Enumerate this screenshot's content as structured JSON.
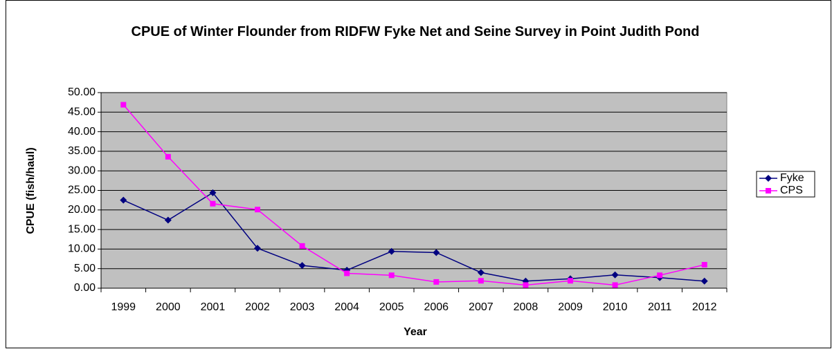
{
  "chart_data": {
    "type": "line",
    "title": "CPUE of Winter Flounder from RIDFW Fyke Net and Seine Survey in Point Judith Pond",
    "x_label": "Year",
    "y_label": "CPUE (fish/haul)",
    "categories": [
      "1999",
      "2000",
      "2001",
      "2002",
      "2003",
      "2004",
      "2005",
      "2006",
      "2007",
      "2008",
      "2009",
      "2010",
      "2011",
      "2012"
    ],
    "series": [
      {
        "name": "Fyke",
        "color": "#000080",
        "marker": "diamond",
        "values": [
          22.5,
          17.4,
          24.4,
          10.2,
          5.8,
          4.6,
          9.4,
          9.1,
          4.0,
          1.8,
          2.4,
          3.4,
          2.7,
          1.8
        ]
      },
      {
        "name": "CPS",
        "color": "#ff00ff",
        "marker": "square",
        "values": [
          46.9,
          33.6,
          21.6,
          20.1,
          10.8,
          3.8,
          3.3,
          1.6,
          1.9,
          0.8,
          1.9,
          0.8,
          3.3,
          6.0
        ]
      }
    ],
    "ylim": [
      0,
      50
    ],
    "yticks": [
      {
        "value": 0,
        "label": "0.00"
      },
      {
        "value": 5,
        "label": "5.00"
      },
      {
        "value": 10,
        "label": "10.00"
      },
      {
        "value": 15,
        "label": "15.00"
      },
      {
        "value": 20,
        "label": "20.00"
      },
      {
        "value": 25,
        "label": "25.00"
      },
      {
        "value": 30,
        "label": "30.00"
      },
      {
        "value": 35,
        "label": "35.00"
      },
      {
        "value": 40,
        "label": "40.00"
      },
      {
        "value": 45,
        "label": "45.00"
      },
      {
        "value": 50,
        "label": "50.00"
      }
    ],
    "grid": true,
    "legend": "right"
  }
}
